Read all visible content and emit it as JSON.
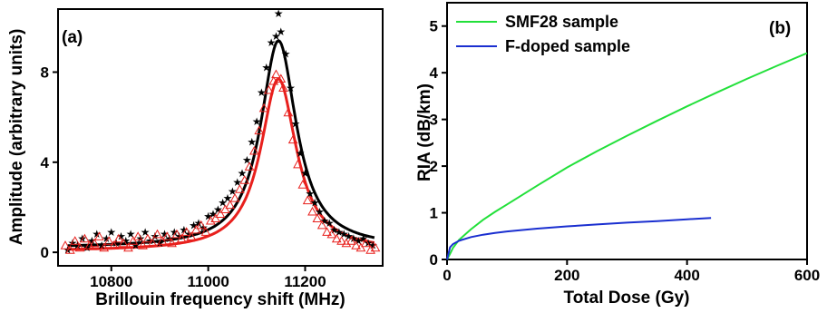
{
  "chart_data": [
    {
      "panel": "(a)",
      "type": "scatter",
      "xlabel": "Brillouin frequency shift (MHz)",
      "ylabel": "Amplitude (arbitrary units)",
      "xlim": [
        10690,
        11360
      ],
      "ylim": [
        -0.6,
        10.8
      ],
      "xticks": [
        10800,
        11000,
        11200
      ],
      "yticks": [
        0,
        4,
        8
      ],
      "fit_model": {
        "type": "lorentzian",
        "center": 11145,
        "hwhm": 45
      },
      "series": [
        {
          "marker": "star",
          "color": "#000000",
          "baseline": 0.2,
          "peak": 9.4,
          "x": [
            10710,
            10720,
            10730,
            10740,
            10750,
            10760,
            10770,
            10780,
            10790,
            10800,
            10810,
            10820,
            10830,
            10840,
            10850,
            10860,
            10870,
            10880,
            10890,
            10900,
            10910,
            10920,
            10930,
            10940,
            10950,
            10960,
            10970,
            10980,
            10990,
            11000,
            11010,
            11020,
            11030,
            11040,
            11050,
            11060,
            11070,
            11080,
            11090,
            11100,
            11110,
            11120,
            11130,
            11140,
            11145,
            11150,
            11160,
            11170,
            11180,
            11190,
            11200,
            11210,
            11220,
            11230,
            11240,
            11250,
            11260,
            11270,
            11280,
            11290,
            11300,
            11310,
            11320,
            11330,
            11340
          ],
          "y": [
            0.1,
            0.4,
            0.3,
            0.6,
            0.2,
            0.5,
            0.8,
            0.3,
            0.6,
            0.9,
            0.4,
            0.7,
            0.5,
            0.8,
            0.3,
            0.6,
            0.9,
            0.5,
            0.7,
            0.4,
            0.8,
            0.6,
            0.9,
            0.7,
            1.0,
            0.8,
            1.2,
            1.3,
            1.1,
            1.6,
            1.7,
            1.9,
            2.2,
            2.4,
            2.7,
            3.1,
            3.5,
            4.1,
            4.9,
            5.8,
            7.1,
            8.2,
            9.3,
            9.6,
            10.6,
            9.8,
            8.8,
            7.3,
            5.7,
            4.4,
            3.5,
            2.6,
            2.2,
            1.8,
            1.4,
            1.3,
            1.0,
            0.9,
            0.8,
            0.7,
            0.6,
            0.5,
            0.6,
            0.4,
            0.3
          ]
        },
        {
          "marker": "triangle",
          "color": "#e8201d",
          "baseline": 0.05,
          "peak": 7.7,
          "x": [
            10705,
            10715,
            10725,
            10735,
            10745,
            10755,
            10765,
            10775,
            10785,
            10795,
            10805,
            10815,
            10825,
            10835,
            10845,
            10855,
            10865,
            10875,
            10885,
            10895,
            10905,
            10915,
            10925,
            10935,
            10945,
            10955,
            10965,
            10975,
            10985,
            10995,
            11005,
            11015,
            11025,
            11035,
            11045,
            11055,
            11065,
            11075,
            11085,
            11095,
            11105,
            11115,
            11125,
            11135,
            11140,
            11150,
            11155,
            11165,
            11175,
            11185,
            11195,
            11205,
            11215,
            11225,
            11235,
            11245,
            11255,
            11265,
            11275,
            11285,
            11295,
            11305,
            11315,
            11325,
            11335,
            11345
          ],
          "y": [
            0.3,
            0.1,
            0.5,
            0.2,
            0.6,
            0.3,
            0.4,
            0.7,
            0.2,
            0.5,
            0.3,
            0.6,
            0.4,
            0.2,
            0.5,
            0.7,
            0.3,
            0.6,
            0.4,
            0.8,
            0.5,
            0.7,
            0.4,
            0.8,
            0.6,
            0.9,
            0.7,
            1.0,
            1.2,
            0.9,
            1.4,
            1.5,
            1.7,
            1.9,
            2.1,
            2.4,
            2.8,
            3.2,
            3.8,
            4.5,
            5.4,
            6.4,
            7.2,
            7.6,
            7.9,
            7.7,
            7.3,
            6.2,
            5.0,
            3.9,
            3.0,
            2.3,
            1.8,
            1.5,
            1.2,
            0.9,
            0.8,
            0.6,
            0.5,
            0.4,
            0.5,
            0.3,
            0.2,
            0.4,
            0.1,
            0.2
          ]
        }
      ]
    },
    {
      "panel": "(b)",
      "type": "line",
      "xlabel": "Total Dose (Gy)",
      "ylabel": "RIA (dB/km)",
      "xlim": [
        0,
        600
      ],
      "ylim": [
        0,
        5.5
      ],
      "xticks": [
        0,
        200,
        400,
        600
      ],
      "yticks": [
        0,
        1,
        2,
        3,
        4,
        5
      ],
      "legend_position": "top-left",
      "series": [
        {
          "name": "SMF28 sample",
          "color": "#22e03a",
          "x": [
            0,
            5,
            10,
            20,
            40,
            60,
            80,
            100,
            150,
            200,
            250,
            300,
            350,
            400,
            450,
            500,
            550,
            600
          ],
          "y": [
            0,
            0.12,
            0.25,
            0.42,
            0.65,
            0.85,
            1.02,
            1.18,
            1.58,
            1.97,
            2.32,
            2.65,
            2.97,
            3.28,
            3.58,
            3.87,
            4.15,
            4.42
          ]
        },
        {
          "name": "F-doped sample",
          "color": "#1a2fd0",
          "x": [
            0,
            5,
            10,
            20,
            40,
            60,
            80,
            100,
            150,
            200,
            250,
            300,
            350,
            400,
            440
          ],
          "y": [
            0,
            0.26,
            0.33,
            0.4,
            0.48,
            0.53,
            0.57,
            0.6,
            0.66,
            0.71,
            0.75,
            0.79,
            0.82,
            0.86,
            0.89
          ]
        }
      ]
    }
  ]
}
